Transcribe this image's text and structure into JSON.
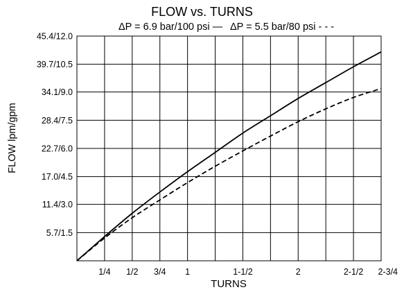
{
  "chart_data": {
    "type": "line",
    "title": "FLOW vs. TURNS",
    "legend": {
      "solid": "ΔP = 6.9 bar/100 psi —",
      "dashed": "ΔP = 5.5 bar/80 psi - - -"
    },
    "xlabel": "TURNS",
    "ylabel": "FLOW lpm/gpm",
    "xlim": [
      0,
      2.75
    ],
    "ylim": [
      0,
      45.4
    ],
    "grid": true,
    "x_ticks": [
      {
        "value": 0.25,
        "label": "1/4"
      },
      {
        "value": 0.5,
        "label": "1/2"
      },
      {
        "value": 0.75,
        "label": "3/4"
      },
      {
        "value": 1.0,
        "label": "1"
      },
      {
        "value": 1.5,
        "label": "1-1/2"
      },
      {
        "value": 2.0,
        "label": "2"
      },
      {
        "value": 2.5,
        "label": "2-1/2"
      },
      {
        "value": 2.75,
        "label": "2-3/4"
      }
    ],
    "x_grid": [
      0.25,
      0.5,
      0.75,
      1.0,
      1.25,
      1.5,
      1.75,
      2.0,
      2.25,
      2.5,
      2.75
    ],
    "y_ticks": [
      {
        "value": 5.7,
        "label": "5.7/1.5"
      },
      {
        "value": 11.4,
        "label": "11.4/3.0"
      },
      {
        "value": 17.0,
        "label": "17.0/4.5"
      },
      {
        "value": 22.7,
        "label": "22.7/6.0"
      },
      {
        "value": 28.4,
        "label": "28.4/7.5"
      },
      {
        "value": 34.1,
        "label": "34.1/9.0"
      },
      {
        "value": 39.7,
        "label": "39.7/10.5"
      },
      {
        "value": 45.4,
        "label": "45.4/12.0"
      }
    ],
    "series": [
      {
        "name": "ΔP = 6.9 bar/100 psi",
        "style": "solid",
        "x": [
          0,
          0.25,
          0.5,
          0.75,
          1.0,
          1.25,
          1.5,
          1.75,
          2.0,
          2.25,
          2.5,
          2.75
        ],
        "values": [
          0,
          4.9,
          9.6,
          13.9,
          18.0,
          21.9,
          25.8,
          29.3,
          32.8,
          36.0,
          39.2,
          42.2
        ]
      },
      {
        "name": "ΔP = 5.5 bar/80 psi",
        "style": "dashed",
        "x": [
          0,
          0.25,
          0.5,
          0.75,
          1.0,
          1.25,
          1.5,
          1.75,
          2.0,
          2.25,
          2.5,
          2.75
        ],
        "values": [
          0,
          4.6,
          8.7,
          12.3,
          15.8,
          19.1,
          22.2,
          25.2,
          28.1,
          30.7,
          33.0,
          34.8
        ]
      }
    ]
  }
}
